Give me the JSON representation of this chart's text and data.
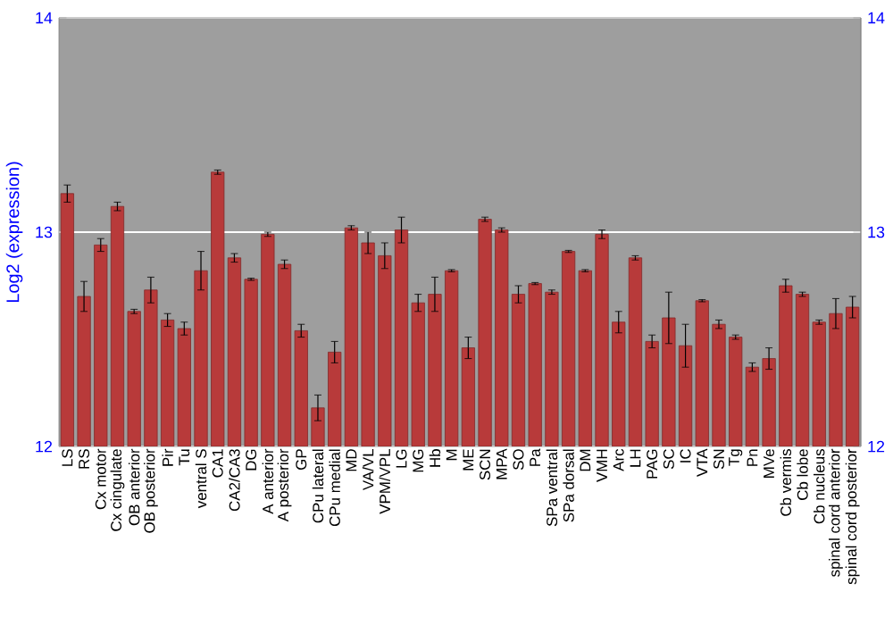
{
  "chart_data": {
    "type": "bar",
    "ylabel": "Log2 (expression)",
    "categories": [
      "LS",
      "RS",
      "Cx motor",
      "Cx cingulate",
      "OB anterior",
      "OB posterior",
      "Pir",
      "Tu",
      "ventral S",
      "CA1",
      "CA2/CA3",
      "DG",
      "A anterior",
      "A posterior",
      "GP",
      "CPu lateral",
      "CPu medial",
      "MD",
      "VA/VL",
      "VPM/VPL",
      "LG",
      "MG",
      "Hb",
      "M",
      "ME",
      "SCN",
      "MPA",
      "SO",
      "Pa",
      "SPa ventral",
      "SPa dorsal",
      "DM",
      "VMH",
      "Arc",
      "LH",
      "PAG",
      "SC",
      "IC",
      "VTA",
      "SN",
      "Tg",
      "Pn",
      "MVe",
      "Cb vermis",
      "Cb lobe",
      "Cb nucleus",
      "spinal cord anterior",
      "spinal cord posterior"
    ],
    "values": [
      13.18,
      12.7,
      12.94,
      13.12,
      12.63,
      12.73,
      12.59,
      12.55,
      12.82,
      13.28,
      12.88,
      12.78,
      12.99,
      12.85,
      12.54,
      12.18,
      12.44,
      13.02,
      12.95,
      12.89,
      13.01,
      12.67,
      12.71,
      12.82,
      12.46,
      13.06,
      13.01,
      12.71,
      12.76,
      12.72,
      12.91,
      12.82,
      12.99,
      12.58,
      12.88,
      12.49,
      12.6,
      12.47,
      12.68,
      12.57,
      12.51,
      12.37,
      12.41,
      12.75,
      12.71,
      12.58,
      12.62,
      12.65
    ],
    "errors": [
      0.04,
      0.07,
      0.03,
      0.02,
      0.01,
      0.06,
      0.03,
      0.03,
      0.09,
      0.01,
      0.02,
      0.005,
      0.01,
      0.02,
      0.03,
      0.06,
      0.05,
      0.01,
      0.05,
      0.06,
      0.06,
      0.04,
      0.08,
      0.005,
      0.05,
      0.01,
      0.01,
      0.04,
      0.005,
      0.01,
      0.005,
      0.005,
      0.02,
      0.05,
      0.01,
      0.03,
      0.12,
      0.1,
      0.005,
      0.02,
      0.01,
      0.02,
      0.05,
      0.03,
      0.01,
      0.01,
      0.07,
      0.05
    ],
    "color": "#b83a3a",
    "ylim": [
      12,
      14
    ],
    "yticks": [
      12,
      13,
      14
    ],
    "y2lim": [
      12,
      14
    ],
    "y2ticks": [
      12,
      13,
      14
    ],
    "grid": "y"
  }
}
